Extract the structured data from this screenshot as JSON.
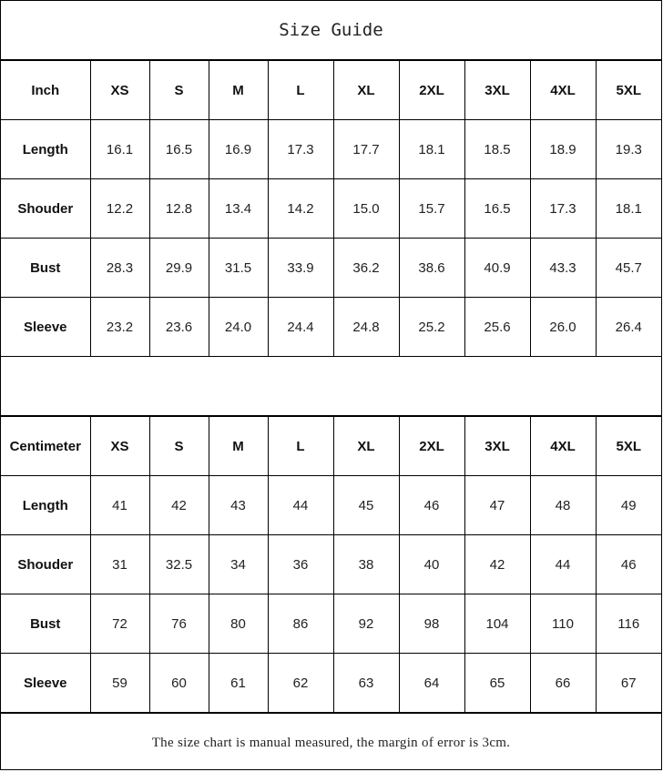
{
  "title": "Size Guide",
  "tables": [
    {
      "unit": "Inch",
      "sizes": [
        "XS",
        "S",
        "M",
        "L",
        "XL",
        "2XL",
        "3XL",
        "4XL",
        "5XL"
      ],
      "rows": [
        {
          "label": "Length",
          "values": [
            "16.1",
            "16.5",
            "16.9",
            "17.3",
            "17.7",
            "18.1",
            "18.5",
            "18.9",
            "19.3"
          ]
        },
        {
          "label": "Shouder",
          "values": [
            "12.2",
            "12.8",
            "13.4",
            "14.2",
            "15.0",
            "15.7",
            "16.5",
            "17.3",
            "18.1"
          ]
        },
        {
          "label": "Bust",
          "values": [
            "28.3",
            "29.9",
            "31.5",
            "33.9",
            "36.2",
            "38.6",
            "40.9",
            "43.3",
            "45.7"
          ]
        },
        {
          "label": "Sleeve",
          "values": [
            "23.2",
            "23.6",
            "24.0",
            "24.4",
            "24.8",
            "25.2",
            "25.6",
            "26.0",
            "26.4"
          ]
        }
      ]
    },
    {
      "unit": "Centimeter",
      "sizes": [
        "XS",
        "S",
        "M",
        "L",
        "XL",
        "2XL",
        "3XL",
        "4XL",
        "5XL"
      ],
      "rows": [
        {
          "label": "Length",
          "values": [
            "41",
            "42",
            "43",
            "44",
            "45",
            "46",
            "47",
            "48",
            "49"
          ]
        },
        {
          "label": "Shouder",
          "values": [
            "31",
            "32.5",
            "34",
            "36",
            "38",
            "40",
            "42",
            "44",
            "46"
          ]
        },
        {
          "label": "Bust",
          "values": [
            "72",
            "76",
            "80",
            "86",
            "92",
            "98",
            "104",
            "110",
            "116"
          ]
        },
        {
          "label": "Sleeve",
          "values": [
            "59",
            "60",
            "61",
            "62",
            "63",
            "64",
            "65",
            "66",
            "67"
          ]
        }
      ]
    }
  ],
  "footnote": "The size chart is manual measured, the margin of error is 3cm."
}
